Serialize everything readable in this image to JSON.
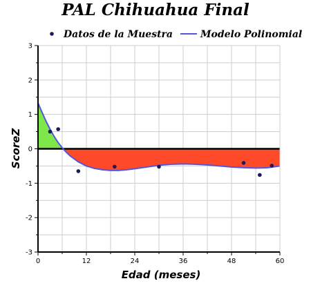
{
  "chart_data": {
    "type": "scatter",
    "title": "PAL Chihuahua Final",
    "xlabel": "Edad (meses)",
    "ylabel": "ScoreZ",
    "xlim": [
      0,
      60
    ],
    "ylim": [
      -3,
      3
    ],
    "x_ticks": [
      0,
      12,
      24,
      36,
      48,
      60
    ],
    "y_ticks": [
      -3,
      -2,
      -1,
      0,
      1,
      2,
      3
    ],
    "grid": true,
    "legend_position": "top",
    "series": [
      {
        "name": "Datos de la Muestra",
        "type": "scatter",
        "color": "#1a1a5e",
        "x": [
          3,
          5,
          10,
          19,
          30,
          51,
          55,
          58
        ],
        "y": [
          0.5,
          0.57,
          -0.65,
          -0.52,
          -0.52,
          -0.41,
          -0.76,
          -0.49
        ]
      },
      {
        "name": "Modelo Polinomial",
        "type": "line",
        "color": "#5555dd",
        "x": [
          0,
          1,
          2,
          3,
          4,
          5,
          6,
          7,
          8,
          10,
          12,
          14,
          16,
          18,
          20,
          22,
          24,
          27,
          30,
          33,
          36,
          39,
          42,
          45,
          48,
          51,
          54,
          57,
          60
        ],
        "y": [
          1.33,
          1.06,
          0.8,
          0.57,
          0.36,
          0.18,
          0.03,
          -0.1,
          -0.21,
          -0.38,
          -0.5,
          -0.57,
          -0.61,
          -0.63,
          -0.63,
          -0.61,
          -0.58,
          -0.53,
          -0.48,
          -0.45,
          -0.44,
          -0.45,
          -0.47,
          -0.5,
          -0.53,
          -0.55,
          -0.56,
          -0.55,
          -0.5
        ]
      }
    ],
    "fill_positive_color": "#7ee84a",
    "fill_negative_color": "#ff4a2a",
    "zero_line_color": "#000000"
  }
}
